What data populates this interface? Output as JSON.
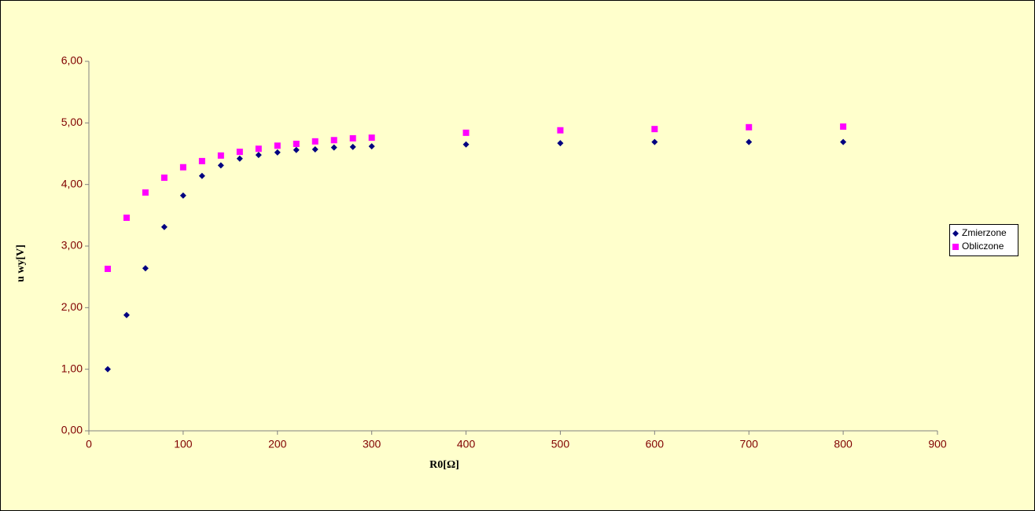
{
  "chart_data": {
    "type": "scatter",
    "x_label": "R0[Ω]",
    "y_label": "u wy[V]",
    "x": [
      20,
      40,
      60,
      80,
      100,
      120,
      140,
      160,
      180,
      200,
      220,
      240,
      260,
      280,
      300,
      400,
      500,
      600,
      700,
      800
    ],
    "series": [
      {
        "name": "Zmierzone",
        "color": "#000080",
        "marker": "diamond",
        "values": [
          1.0,
          1.88,
          2.64,
          3.31,
          3.82,
          4.14,
          4.31,
          4.42,
          4.48,
          4.52,
          4.56,
          4.57,
          4.6,
          4.61,
          4.62,
          4.65,
          4.67,
          4.69,
          4.69,
          4.69
        ]
      },
      {
        "name": "Obliczone",
        "color": "#ff00ff",
        "marker": "square",
        "values": [
          2.63,
          3.46,
          3.87,
          4.11,
          4.28,
          4.38,
          4.47,
          4.53,
          4.58,
          4.63,
          4.66,
          4.7,
          4.72,
          4.75,
          4.76,
          4.84,
          4.88,
          4.9,
          4.93,
          4.94
        ]
      }
    ],
    "xlim": [
      0,
      900
    ],
    "xticks": [
      0,
      100,
      200,
      300,
      400,
      500,
      600,
      700,
      800,
      900
    ],
    "ylim": [
      0,
      6
    ],
    "yticks": [
      {
        "value": 0,
        "label": "0,00"
      },
      {
        "value": 1,
        "label": "1,00"
      },
      {
        "value": 2,
        "label": "2,00"
      },
      {
        "value": 3,
        "label": "3,00"
      },
      {
        "value": 4,
        "label": "4,00"
      },
      {
        "value": 5,
        "label": "5,00"
      },
      {
        "value": 6,
        "label": "6,00"
      }
    ],
    "grid": false,
    "legend": "right",
    "background": "#ffffcc"
  }
}
